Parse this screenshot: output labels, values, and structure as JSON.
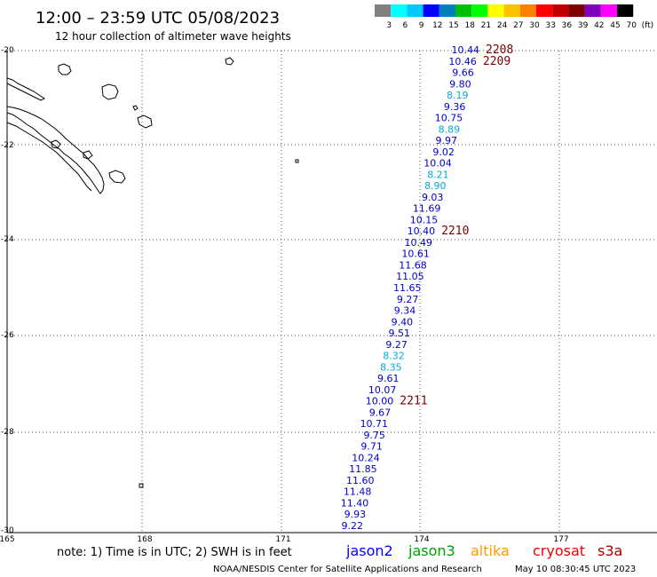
{
  "title": "12:00 – 23:59 UTC 05/08/2023",
  "subtitle": "12 hour collection of altimeter wave heights",
  "legend": {
    "colors": [
      "#808080",
      "#00ffff",
      "#00c8ff",
      "#0000ff",
      "#0080c0",
      "#00c000",
      "#00ff00",
      "#ffff00",
      "#ffc000",
      "#ff8000",
      "#ff0000",
      "#c00000",
      "#800000",
      "#8000c0",
      "#ff00ff",
      "#000000"
    ],
    "labels": [
      "3",
      "6",
      "9",
      "12",
      "15",
      "18",
      "21",
      "24",
      "27",
      "30",
      "33",
      "36",
      "39",
      "42",
      "45",
      "70",
      "(ft)"
    ]
  },
  "axes": {
    "lat_labels": [
      "-20",
      "-22",
      "-24",
      "-26",
      "-28",
      "-30"
    ],
    "lon_labels": [
      "165",
      "168",
      "171",
      "174",
      "177"
    ]
  },
  "observations": [
    {
      "value": "10.44",
      "color": "#0000cc"
    },
    {
      "value": "10.46",
      "color": "#0000cc"
    },
    {
      "value": "9.66",
      "color": "#0000cc"
    },
    {
      "value": "9.80",
      "color": "#0000cc"
    },
    {
      "value": "8.19",
      "color": "#00aadd"
    },
    {
      "value": "9.36",
      "color": "#0000cc"
    },
    {
      "value": "10.75",
      "color": "#0000cc"
    },
    {
      "value": "8.89",
      "color": "#00aadd"
    },
    {
      "value": "9.97",
      "color": "#0000cc"
    },
    {
      "value": "9.02",
      "color": "#0000cc"
    },
    {
      "value": "10.04",
      "color": "#0000cc"
    },
    {
      "value": "8.21",
      "color": "#00aadd"
    },
    {
      "value": "8.90",
      "color": "#00aadd"
    },
    {
      "value": "9.03",
      "color": "#0000cc"
    },
    {
      "value": "11.69",
      "color": "#0000cc"
    },
    {
      "value": "10.15",
      "color": "#0000cc"
    },
    {
      "value": "10.40",
      "color": "#0000cc"
    },
    {
      "value": "10.49",
      "color": "#0000cc"
    },
    {
      "value": "10.61",
      "color": "#0000cc"
    },
    {
      "value": "11.68",
      "color": "#0000cc"
    },
    {
      "value": "11.05",
      "color": "#0000cc"
    },
    {
      "value": "11.65",
      "color": "#0000cc"
    },
    {
      "value": "9.27",
      "color": "#0000cc"
    },
    {
      "value": "9.34",
      "color": "#0000cc"
    },
    {
      "value": "9.40",
      "color": "#0000cc"
    },
    {
      "value": "9.51",
      "color": "#0000cc"
    },
    {
      "value": "9.27",
      "color": "#0000cc"
    },
    {
      "value": "8.32",
      "color": "#00aadd"
    },
    {
      "value": "8.35",
      "color": "#00aadd"
    },
    {
      "value": "9.61",
      "color": "#0000cc"
    },
    {
      "value": "10.07",
      "color": "#0000cc"
    },
    {
      "value": "10.00",
      "color": "#0000cc"
    },
    {
      "value": "9.67",
      "color": "#0000cc"
    },
    {
      "value": "10.71",
      "color": "#0000cc"
    },
    {
      "value": "9.75",
      "color": "#0000cc"
    },
    {
      "value": "9.71",
      "color": "#0000cc"
    },
    {
      "value": "10.24",
      "color": "#0000cc"
    },
    {
      "value": "11.85",
      "color": "#0000cc"
    },
    {
      "value": "11.60",
      "color": "#0000cc"
    },
    {
      "value": "11.48",
      "color": "#0000cc"
    },
    {
      "value": "11.40",
      "color": "#0000cc"
    },
    {
      "value": "9.93",
      "color": "#0000cc"
    },
    {
      "value": "9.22",
      "color": "#0000cc"
    }
  ],
  "pass_times": [
    "2208",
    "2209",
    "2210",
    "2211"
  ],
  "note": "note: 1) Time is in UTC; 2) SWH is in feet",
  "satellites": [
    {
      "name": "jason2",
      "color": "#0000ff"
    },
    {
      "name": "jason3",
      "color": "#00a000"
    },
    {
      "name": "altika",
      "color": "#ff9900"
    },
    {
      "name": "cryosat",
      "color": "#ee0000"
    },
    {
      "name": "s3a",
      "color": "#aa0000"
    }
  ],
  "credit_left": "NOAA/NESDIS Center for Satellite Applications and Research",
  "credit_right": "May 10 08:30:45 UTC 2023"
}
